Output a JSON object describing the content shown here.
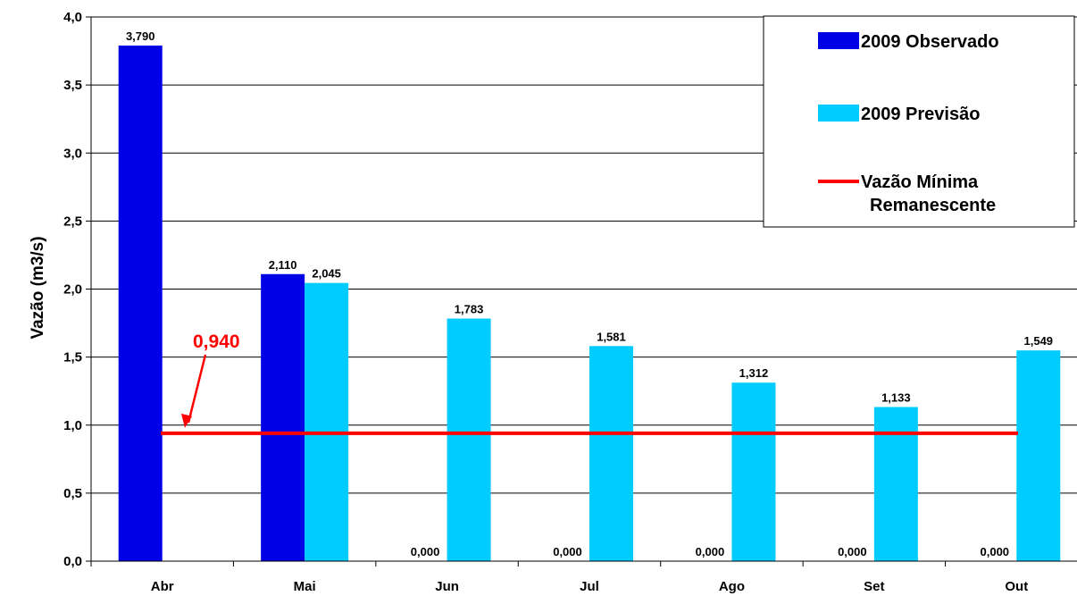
{
  "chart_data": {
    "type": "bar",
    "categories": [
      "Abr",
      "Mai",
      "Jun",
      "Jul",
      "Ago",
      "Set",
      "Out"
    ],
    "series": [
      {
        "name": "2009 Observado",
        "color": "#0000e6",
        "values": [
          3.79,
          2.11,
          0,
          0,
          0,
          0,
          0
        ],
        "labels": [
          "3,790",
          "2,110",
          "0,000",
          "0,000",
          "0,000",
          "0,000",
          "0,000"
        ],
        "drawn": [
          true,
          true,
          false,
          false,
          false,
          false,
          false
        ]
      },
      {
        "name": "2009 Previsão",
        "color": "#00ccff",
        "values": [
          null,
          2.045,
          1.783,
          1.581,
          1.312,
          1.133,
          1.549
        ],
        "labels": [
          "",
          "2,045",
          "1,783",
          "1,581",
          "1,312",
          "1,133",
          "1,549"
        ],
        "drawn": [
          false,
          true,
          true,
          true,
          true,
          true,
          true
        ]
      }
    ],
    "reference_line": {
      "name": "Vazão Mínima Remanescente",
      "name_lines": [
        "Vazão Mínima",
        "Remanescente"
      ],
      "value": 0.94,
      "color": "#ff0000",
      "annotation": "0,940"
    },
    "ylabel": "Vazão (m3/s)",
    "xlabel": "",
    "ylim": [
      0,
      4
    ],
    "yticks": [
      "0,0",
      "0,5",
      "1,0",
      "1,5",
      "2,0",
      "2,5",
      "3,0",
      "3,5",
      "4,0"
    ],
    "grid": true,
    "legend_position": "top-right"
  }
}
